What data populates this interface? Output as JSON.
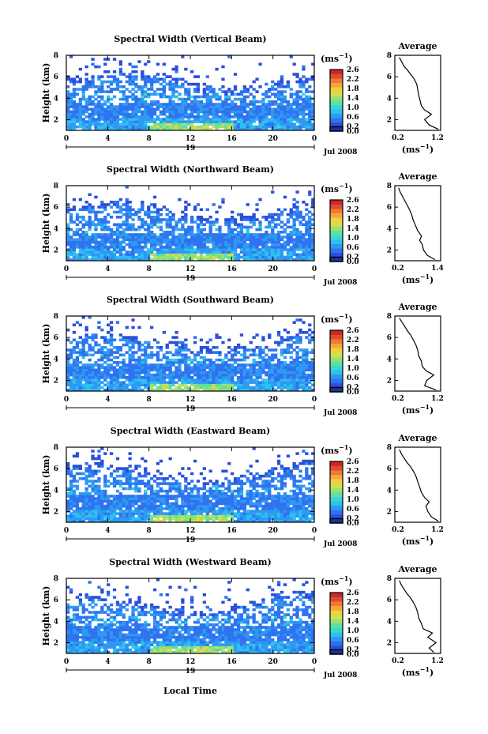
{
  "page": {
    "date_label": "Jul 2008",
    "day_label": "19",
    "xlabel": "Local Time"
  },
  "colorbar": {
    "unit": "(ms",
    "unit_sup": "−1",
    "unit_close": ")",
    "ticks": [
      "2.6",
      "2.4",
      "2.2",
      "2.0",
      "1.8",
      "1.6",
      "1.4",
      "1.2",
      "1.0",
      "0.8",
      "0.6",
      "0.4",
      "0.2",
      "0.0"
    ],
    "colors": [
      "#1f2f9c",
      "#2b4fd8",
      "#2f73f0",
      "#2f99f2",
      "#2ec0ee",
      "#3ad8d0",
      "#5ee0a0",
      "#9ae070",
      "#d4e050",
      "#f0d040",
      "#f6a638",
      "#f07a34",
      "#e04a30",
      "#c8282c"
    ]
  },
  "chart_data": [
    {
      "type": "heatmap",
      "title": "Spectral Width (Vertical Beam)",
      "ylabel": "Height (km)",
      "xticks": [
        "0",
        "4",
        "8",
        "12",
        "16",
        "20",
        "0"
      ],
      "yticks": [
        "2",
        "4",
        "6",
        "8"
      ],
      "xlim": [
        0,
        24
      ],
      "ylim": [
        1,
        8
      ],
      "profile": {
        "title": "Average",
        "xlabel": "(ms",
        "xlabel_sup": "−1",
        "xlabel_close": ")",
        "xticks": [
          "0.2",
          "1.2"
        ],
        "xlim": [
          0.2,
          1.2
        ],
        "yticks": [
          "2",
          "4",
          "6",
          "8"
        ],
        "height": [
          1.1,
          1.5,
          2.0,
          2.5,
          2.9,
          3.3,
          3.8,
          4.3,
          4.8,
          5.3,
          5.8,
          6.2,
          6.6,
          7.0,
          7.4,
          7.8
        ],
        "width": [
          1.15,
          0.95,
          0.85,
          1.0,
          0.85,
          0.78,
          0.75,
          0.72,
          0.7,
          0.68,
          0.62,
          0.55,
          0.48,
          0.4,
          0.35,
          0.3
        ]
      }
    },
    {
      "type": "heatmap",
      "title": "Spectral Width (Northward Beam)",
      "ylabel": "Height (km)",
      "xticks": [
        "0",
        "4",
        "8",
        "12",
        "16",
        "20",
        "0"
      ],
      "yticks": [
        "2",
        "4",
        "6",
        "8"
      ],
      "xlim": [
        0,
        24
      ],
      "ylim": [
        1,
        8
      ],
      "profile": {
        "title": "Average",
        "xlabel": "(ms",
        "xlabel_sup": "−1",
        "xlabel_close": ")",
        "xticks": [
          "0.2",
          "1.4"
        ],
        "xlim": [
          0.2,
          1.4
        ],
        "yticks": [
          "2",
          "4",
          "6",
          "8"
        ],
        "height": [
          1.1,
          1.5,
          2.0,
          2.5,
          2.9,
          3.3,
          3.8,
          4.3,
          4.8,
          5.3,
          5.8,
          6.2,
          6.6,
          7.0,
          7.4,
          7.8
        ],
        "width": [
          1.25,
          1.05,
          0.95,
          0.92,
          0.85,
          0.9,
          0.8,
          0.74,
          0.68,
          0.64,
          0.58,
          0.52,
          0.46,
          0.4,
          0.34,
          0.3
        ]
      }
    },
    {
      "type": "heatmap",
      "title": "Spectral Width (Southward Beam)",
      "ylabel": "Height (km)",
      "xticks": [
        "0",
        "4",
        "8",
        "12",
        "16",
        "20",
        "0"
      ],
      "yticks": [
        "2",
        "4",
        "6",
        "8"
      ],
      "xlim": [
        0,
        24
      ],
      "ylim": [
        1,
        8
      ],
      "profile": {
        "title": "Average",
        "xlabel": "(ms",
        "xlabel_sup": "−1",
        "xlabel_close": ")",
        "xticks": [
          "0.2",
          "1.2"
        ],
        "xlim": [
          0.2,
          1.2
        ],
        "yticks": [
          "2",
          "4",
          "6",
          "8"
        ],
        "height": [
          1.1,
          1.5,
          2.0,
          2.5,
          2.9,
          3.3,
          3.8,
          4.3,
          4.8,
          5.3,
          5.8,
          6.2,
          6.6,
          7.0,
          7.4,
          7.8
        ],
        "width": [
          1.1,
          0.85,
          0.9,
          1.05,
          0.88,
          0.8,
          0.78,
          0.72,
          0.7,
          0.66,
          0.6,
          0.55,
          0.48,
          0.42,
          0.36,
          0.3
        ]
      }
    },
    {
      "type": "heatmap",
      "title": "Spectral Width (Eastward Beam)",
      "ylabel": "Height (km)",
      "xticks": [
        "0",
        "4",
        "8",
        "12",
        "16",
        "20",
        "0"
      ],
      "yticks": [
        "2",
        "4",
        "6",
        "8"
      ],
      "xlim": [
        0,
        24
      ],
      "ylim": [
        1,
        8
      ],
      "profile": {
        "title": "Average",
        "xlabel": "(ms",
        "xlabel_sup": "−1",
        "xlabel_close": ")",
        "xticks": [
          "0.2",
          "1.2"
        ],
        "xlim": [
          0.2,
          1.2
        ],
        "yticks": [
          "2",
          "4",
          "6",
          "8"
        ],
        "height": [
          1.1,
          1.5,
          2.0,
          2.5,
          2.9,
          3.3,
          3.8,
          4.3,
          4.8,
          5.3,
          5.8,
          6.2,
          6.6,
          7.0,
          7.4,
          7.8
        ],
        "width": [
          1.15,
          1.0,
          0.92,
          0.88,
          0.95,
          0.85,
          0.78,
          0.74,
          0.7,
          0.66,
          0.6,
          0.54,
          0.46,
          0.4,
          0.34,
          0.3
        ]
      }
    },
    {
      "type": "heatmap",
      "title": "Spectral Width (Westward Beam)",
      "ylabel": "Height (km)",
      "xticks": [
        "0",
        "4",
        "8",
        "12",
        "16",
        "20",
        "0"
      ],
      "yticks": [
        "2",
        "4",
        "6",
        "8"
      ],
      "xlim": [
        0,
        24
      ],
      "ylim": [
        1,
        8
      ],
      "profile": {
        "title": "Average",
        "xlabel": "(ms",
        "xlabel_sup": "−1",
        "xlabel_close": ")",
        "xticks": [
          "0.2",
          "1.2"
        ],
        "xlim": [
          0.2,
          1.2
        ],
        "yticks": [
          "2",
          "4",
          "6",
          "8"
        ],
        "height": [
          1.1,
          1.5,
          2.0,
          2.5,
          2.9,
          3.3,
          3.8,
          4.3,
          4.8,
          5.3,
          5.8,
          6.2,
          6.6,
          7.0,
          7.4,
          7.8
        ],
        "width": [
          1.05,
          0.95,
          1.1,
          0.92,
          1.02,
          0.82,
          0.78,
          0.72,
          0.7,
          0.66,
          0.6,
          0.54,
          0.46,
          0.4,
          0.34,
          0.3
        ]
      }
    }
  ]
}
